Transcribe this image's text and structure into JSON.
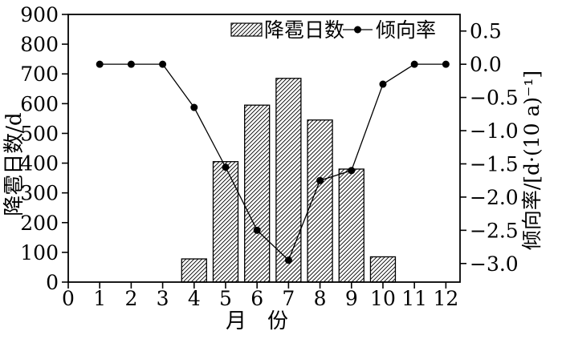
{
  "chart_data": {
    "type": "bar+line dual-axis combo",
    "title": "",
    "x_label": "月　份",
    "x_ticks": [
      0,
      1,
      2,
      3,
      4,
      5,
      6,
      7,
      8,
      9,
      10,
      11,
      12
    ],
    "x_display_range": [
      0,
      12.45
    ],
    "grid": "off",
    "frame": "full box, outward ticks",
    "colors": {
      "ink": "#000000",
      "background": "#ffffff"
    },
    "left_axis": {
      "label": "降雹日数/d",
      "range": [
        0,
        900
      ],
      "tick_values": [
        0,
        100,
        200,
        300,
        400,
        500,
        600,
        700,
        800,
        900
      ]
    },
    "right_axis": {
      "label": "倾向率/[d·(10 a)⁻¹]",
      "display_range": [
        0.75,
        -3.28
      ],
      "tick_values": [
        0.5,
        0.0,
        -0.5,
        -1.0,
        -1.5,
        -2.0,
        -2.5,
        -3.0
      ],
      "tick_labels": [
        "0.5",
        "0.0",
        "−0.5",
        "−1.0",
        "−1.5",
        "−2.0",
        "−2.5",
        "−3.0"
      ]
    },
    "bar_series": {
      "name": "降雹日数",
      "axis": "left",
      "style": "white fill with black diagonal hatching",
      "months": [
        4,
        5,
        6,
        7,
        8,
        9,
        10
      ],
      "values": [
        78,
        405,
        595,
        685,
        545,
        380,
        85
      ]
    },
    "line_series": {
      "name": "倾向率",
      "axis": "right",
      "style": "black line with filled circle markers",
      "months": [
        1,
        2,
        3,
        4,
        5,
        6,
        7,
        8,
        9,
        10,
        11,
        12
      ],
      "values": [
        0.0,
        0.0,
        0.0,
        -0.65,
        -1.55,
        -2.5,
        -2.95,
        -1.75,
        -1.6,
        -0.3,
        0.0,
        0.0
      ]
    },
    "legend": {
      "position": "top center, inside frame"
    }
  }
}
